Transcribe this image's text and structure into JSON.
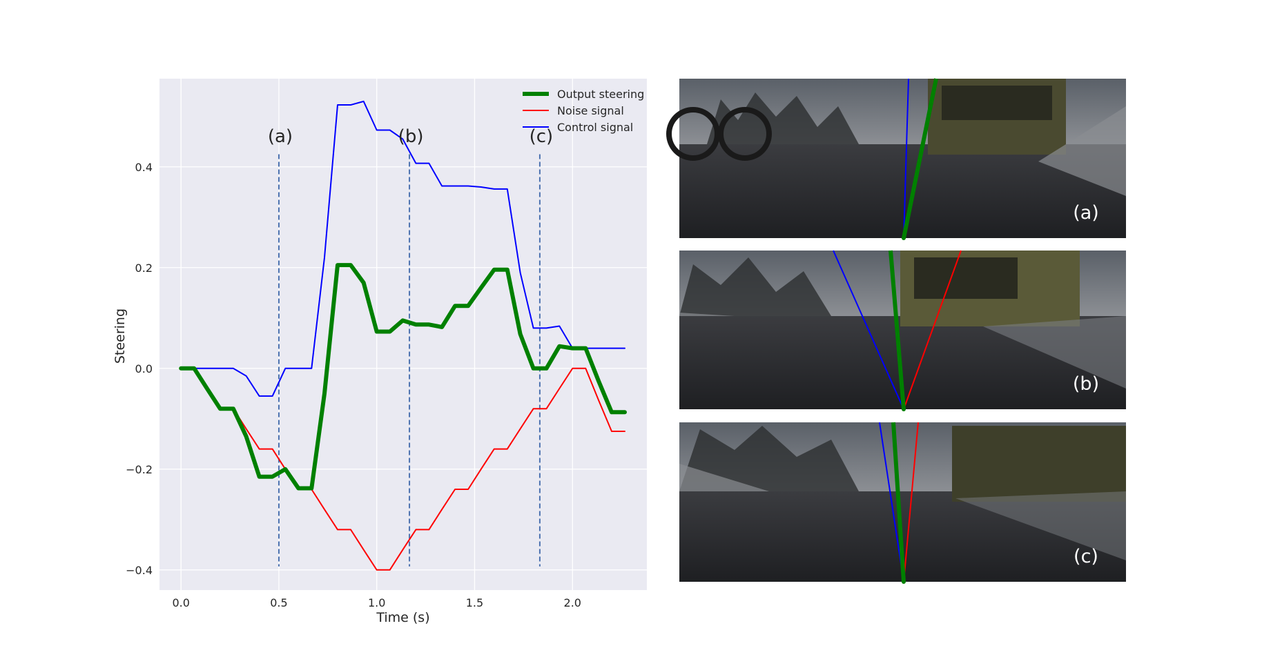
{
  "chart_data": {
    "type": "line",
    "xlabel": "Time (s)",
    "ylabel": "Steering",
    "xlim": [
      -0.11,
      2.38
    ],
    "ylim": [
      -0.44,
      0.575
    ],
    "xticks": [
      0.0,
      0.5,
      1.0,
      1.5,
      2.0
    ],
    "xtick_labels": [
      "0.0",
      "0.5",
      "1.0",
      "1.5",
      "2.0"
    ],
    "yticks": [
      -0.4,
      -0.2,
      0.0,
      0.2,
      0.4
    ],
    "ytick_labels": [
      "−0.4",
      "−0.2",
      "0.0",
      "0.2",
      "0.4"
    ],
    "grid": true,
    "legend_position": "top-right",
    "x": [
      0.0,
      0.067,
      0.133,
      0.2,
      0.267,
      0.333,
      0.4,
      0.467,
      0.533,
      0.6,
      0.667,
      0.733,
      0.8,
      0.867,
      0.933,
      1.0,
      1.067,
      1.133,
      1.2,
      1.267,
      1.333,
      1.4,
      1.467,
      1.533,
      1.6,
      1.667,
      1.733,
      1.8,
      1.867,
      1.933,
      2.0,
      2.067,
      2.133,
      2.2,
      2.267
    ],
    "series": [
      {
        "name": "Output steering",
        "color": "#008000",
        "width": 6,
        "values": [
          0.0,
          0.0,
          -0.04,
          -0.08,
          -0.08,
          -0.135,
          -0.215,
          -0.215,
          -0.2,
          -0.238,
          -0.238,
          -0.05,
          0.205,
          0.205,
          0.17,
          0.073,
          0.073,
          0.095,
          0.087,
          0.087,
          0.082,
          0.124,
          0.124,
          0.16,
          0.196,
          0.196,
          0.068,
          0.0,
          0.0,
          0.044,
          0.04,
          0.04,
          -0.025,
          -0.087,
          -0.087
        ]
      },
      {
        "name": "Noise signal",
        "color": "#ff0000",
        "width": 2,
        "values": [
          0.0,
          0.0,
          -0.04,
          -0.08,
          -0.08,
          -0.12,
          -0.16,
          -0.16,
          -0.2,
          -0.24,
          -0.24,
          -0.28,
          -0.32,
          -0.32,
          -0.36,
          -0.4,
          -0.4,
          -0.36,
          -0.32,
          -0.32,
          -0.28,
          -0.24,
          -0.24,
          -0.2,
          -0.16,
          -0.16,
          -0.12,
          -0.08,
          -0.08,
          -0.04,
          0.0,
          0.0,
          -0.063,
          -0.125,
          -0.125
        ]
      },
      {
        "name": "Control signal",
        "color": "#0000ff",
        "width": 2,
        "values": [
          0.0,
          0.0,
          0.0,
          0.0,
          0.0,
          -0.015,
          -0.055,
          -0.055,
          0.0,
          0.0,
          0.0,
          0.22,
          0.523,
          0.523,
          0.53,
          0.473,
          0.473,
          0.455,
          0.407,
          0.407,
          0.362,
          0.362,
          0.362,
          0.36,
          0.356,
          0.356,
          0.19,
          0.08,
          0.08,
          0.084,
          0.04,
          0.04,
          0.04,
          0.04,
          0.04
        ]
      }
    ],
    "annotations": [
      {
        "label": "(a)",
        "x": 0.5
      },
      {
        "label": "(b)",
        "x": 1.167
      },
      {
        "label": "(c)",
        "x": 1.833
      }
    ],
    "vline_color": "#4c72b0"
  },
  "panels": [
    {
      "label": "(a)"
    },
    {
      "label": "(b)"
    },
    {
      "label": "(c)"
    }
  ]
}
